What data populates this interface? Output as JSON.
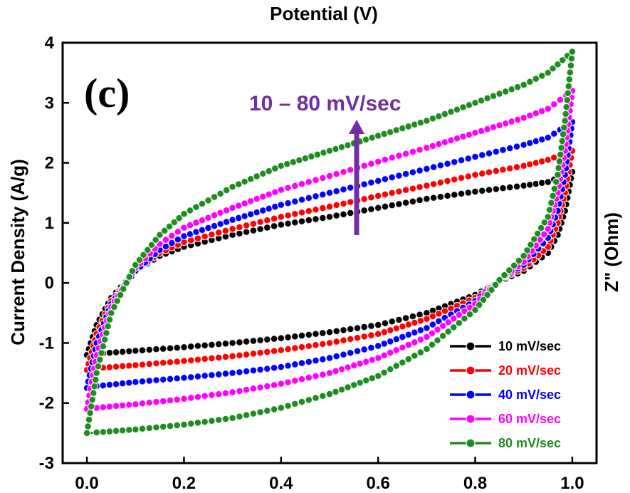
{
  "chart_data": {
    "type": "line",
    "panel_label": "(c)",
    "xlabel_top": "Potential (V)",
    "ylabel": "Current Density (A/g)",
    "ylabel_right": "Z\" (Ohm)",
    "xlim": [
      -0.05,
      1.05
    ],
    "ylim": [
      -3,
      4
    ],
    "xticks": [
      0.0,
      0.2,
      0.4,
      0.6,
      0.8,
      1.0
    ],
    "xtick_labels": [
      "0.0",
      "0.2",
      "0.4",
      "0.6",
      "0.8",
      "1.0"
    ],
    "yticks": [
      -3,
      -2,
      -1,
      0,
      1,
      2,
      3,
      4
    ],
    "ytick_labels": [
      "-3",
      "-2",
      "-1",
      "0",
      "1",
      "2",
      "3",
      "4"
    ],
    "annotation": "10 – 80 mV/sec",
    "annotation_color": "#7030a0",
    "legend_position": "bottom-right",
    "series": [
      {
        "name": "10 mV/sec",
        "color": "#000000",
        "anodic": [
          [
            0.0,
            -1.2
          ],
          [
            0.02,
            -0.7
          ],
          [
            0.05,
            -0.25
          ],
          [
            0.1,
            0.2
          ],
          [
            0.15,
            0.45
          ],
          [
            0.2,
            0.6
          ],
          [
            0.3,
            0.8
          ],
          [
            0.4,
            0.97
          ],
          [
            0.5,
            1.1
          ],
          [
            0.6,
            1.25
          ],
          [
            0.7,
            1.4
          ],
          [
            0.8,
            1.52
          ],
          [
            0.9,
            1.62
          ],
          [
            0.95,
            1.68
          ],
          [
            1.0,
            1.85
          ]
        ],
        "cathodic": [
          [
            1.0,
            1.85
          ],
          [
            0.985,
            1.2
          ],
          [
            0.97,
            0.8
          ],
          [
            0.95,
            0.5
          ],
          [
            0.9,
            0.2
          ],
          [
            0.85,
            0.03
          ],
          [
            0.8,
            -0.2
          ],
          [
            0.7,
            -0.5
          ],
          [
            0.6,
            -0.7
          ],
          [
            0.5,
            -0.82
          ],
          [
            0.4,
            -0.92
          ],
          [
            0.3,
            -1.0
          ],
          [
            0.2,
            -1.07
          ],
          [
            0.1,
            -1.13
          ],
          [
            0.02,
            -1.18
          ],
          [
            0.0,
            -1.2
          ]
        ]
      },
      {
        "name": "20 mV/sec",
        "color": "#ff0000",
        "anodic": [
          [
            0.0,
            -1.45
          ],
          [
            0.02,
            -0.85
          ],
          [
            0.05,
            -0.3
          ],
          [
            0.1,
            0.2
          ],
          [
            0.15,
            0.5
          ],
          [
            0.2,
            0.68
          ],
          [
            0.3,
            0.9
          ],
          [
            0.4,
            1.1
          ],
          [
            0.5,
            1.27
          ],
          [
            0.6,
            1.45
          ],
          [
            0.7,
            1.62
          ],
          [
            0.8,
            1.8
          ],
          [
            0.9,
            1.95
          ],
          [
            0.95,
            2.05
          ],
          [
            1.0,
            2.2
          ]
        ],
        "cathodic": [
          [
            1.0,
            2.2
          ],
          [
            0.985,
            1.5
          ],
          [
            0.97,
            1.0
          ],
          [
            0.95,
            0.6
          ],
          [
            0.9,
            0.25
          ],
          [
            0.85,
            0.05
          ],
          [
            0.8,
            -0.25
          ],
          [
            0.7,
            -0.6
          ],
          [
            0.6,
            -0.85
          ],
          [
            0.5,
            -1.0
          ],
          [
            0.4,
            -1.12
          ],
          [
            0.3,
            -1.22
          ],
          [
            0.2,
            -1.3
          ],
          [
            0.1,
            -1.37
          ],
          [
            0.02,
            -1.42
          ],
          [
            0.0,
            -1.45
          ]
        ]
      },
      {
        "name": "40 mV/sec",
        "color": "#0000ff",
        "anodic": [
          [
            0.0,
            -1.75
          ],
          [
            0.02,
            -1.0
          ],
          [
            0.05,
            -0.35
          ],
          [
            0.1,
            0.2
          ],
          [
            0.15,
            0.55
          ],
          [
            0.2,
            0.78
          ],
          [
            0.3,
            1.05
          ],
          [
            0.4,
            1.3
          ],
          [
            0.5,
            1.5
          ],
          [
            0.6,
            1.7
          ],
          [
            0.7,
            1.9
          ],
          [
            0.8,
            2.1
          ],
          [
            0.9,
            2.3
          ],
          [
            0.95,
            2.42
          ],
          [
            1.0,
            2.68
          ]
        ],
        "cathodic": [
          [
            1.0,
            2.68
          ],
          [
            0.985,
            1.8
          ],
          [
            0.97,
            1.2
          ],
          [
            0.95,
            0.75
          ],
          [
            0.9,
            0.3
          ],
          [
            0.85,
            0.05
          ],
          [
            0.8,
            -0.3
          ],
          [
            0.7,
            -0.75
          ],
          [
            0.6,
            -1.05
          ],
          [
            0.5,
            -1.25
          ],
          [
            0.4,
            -1.4
          ],
          [
            0.3,
            -1.5
          ],
          [
            0.2,
            -1.58
          ],
          [
            0.1,
            -1.65
          ],
          [
            0.02,
            -1.72
          ],
          [
            0.0,
            -1.75
          ]
        ]
      },
      {
        "name": "60 mV/sec",
        "color": "#ff00ff",
        "anodic": [
          [
            0.0,
            -2.1
          ],
          [
            0.02,
            -1.2
          ],
          [
            0.05,
            -0.4
          ],
          [
            0.1,
            0.25
          ],
          [
            0.15,
            0.65
          ],
          [
            0.2,
            0.92
          ],
          [
            0.3,
            1.25
          ],
          [
            0.4,
            1.55
          ],
          [
            0.5,
            1.78
          ],
          [
            0.6,
            2.02
          ],
          [
            0.7,
            2.25
          ],
          [
            0.8,
            2.5
          ],
          [
            0.9,
            2.75
          ],
          [
            0.95,
            2.9
          ],
          [
            1.0,
            3.2
          ]
        ],
        "cathodic": [
          [
            1.0,
            3.2
          ],
          [
            0.985,
            2.2
          ],
          [
            0.97,
            1.5
          ],
          [
            0.95,
            0.9
          ],
          [
            0.9,
            0.35
          ],
          [
            0.85,
            0.05
          ],
          [
            0.8,
            -0.35
          ],
          [
            0.7,
            -0.9
          ],
          [
            0.6,
            -1.25
          ],
          [
            0.5,
            -1.5
          ],
          [
            0.4,
            -1.68
          ],
          [
            0.3,
            -1.82
          ],
          [
            0.2,
            -1.93
          ],
          [
            0.1,
            -2.02
          ],
          [
            0.02,
            -2.08
          ],
          [
            0.0,
            -2.1
          ]
        ]
      },
      {
        "name": "80 mV/sec",
        "color": "#1e8c1e",
        "anodic": [
          [
            0.0,
            -2.5
          ],
          [
            0.02,
            -1.5
          ],
          [
            0.05,
            -0.5
          ],
          [
            0.1,
            0.3
          ],
          [
            0.15,
            0.8
          ],
          [
            0.2,
            1.15
          ],
          [
            0.3,
            1.6
          ],
          [
            0.4,
            1.95
          ],
          [
            0.5,
            2.2
          ],
          [
            0.6,
            2.45
          ],
          [
            0.7,
            2.7
          ],
          [
            0.8,
            3.0
          ],
          [
            0.9,
            3.3
          ],
          [
            0.95,
            3.5
          ],
          [
            1.0,
            3.85
          ]
        ],
        "cathodic": [
          [
            1.0,
            3.85
          ],
          [
            0.985,
            2.7
          ],
          [
            0.97,
            1.8
          ],
          [
            0.95,
            1.1
          ],
          [
            0.9,
            0.45
          ],
          [
            0.85,
            0.05
          ],
          [
            0.8,
            -0.45
          ],
          [
            0.7,
            -1.1
          ],
          [
            0.6,
            -1.55
          ],
          [
            0.5,
            -1.85
          ],
          [
            0.4,
            -2.08
          ],
          [
            0.3,
            -2.25
          ],
          [
            0.2,
            -2.36
          ],
          [
            0.1,
            -2.44
          ],
          [
            0.02,
            -2.49
          ],
          [
            0.0,
            -2.5
          ]
        ]
      }
    ]
  }
}
